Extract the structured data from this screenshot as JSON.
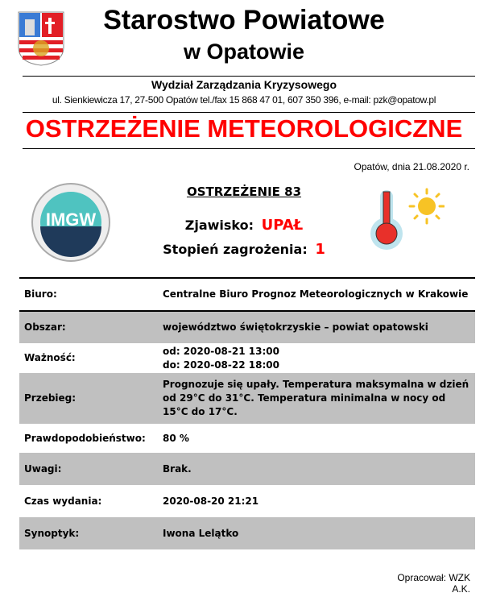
{
  "header": {
    "title_line1": "Starostwo Powiatowe",
    "title_line2": "w Opatowie",
    "department": "Wydział Zarządzania Kryzysowego",
    "address": "ul. Sienkiewicza 17, 27-500 Opatów tel./fax 15 868 47 01, 607 350 396, e-mail: pzk@opatow.pl",
    "doc_title": "OSTRZEŻENIE METEOROLOGICZNE",
    "date": "Opatów, dnia 21.08.2020 r."
  },
  "warning": {
    "heading": "OSTRZEŻENIE 83",
    "phenomenon_label": "Zjawisko:",
    "phenomenon_value": "UPAŁ",
    "level_label": "Stopień zagrożenia:",
    "level_value": "1",
    "logo_text": "IMGW"
  },
  "table": {
    "rows": [
      {
        "label": "Biuro:",
        "value": "Centralne Biuro Prognoz Meteorologicznych w Krakowie"
      },
      {
        "label": "Obszar:",
        "value": "województwo świętokrzyskie – powiat opatowski"
      },
      {
        "label": "Ważność:",
        "value": "od: 2020-08-21 13:00",
        "value2": "do: 2020-08-22 18:00"
      },
      {
        "label": "Przebieg:",
        "value": "Prognozuje się upały. Temperatura maksymalna w dzień od 29°C do 31°C. Temperatura minimalna w nocy od 15°C do 17°C."
      },
      {
        "label": "Prawdopodobieństwo:",
        "value": "80 %"
      },
      {
        "label": "Uwagi:",
        "value": "Brak."
      },
      {
        "label": "Czas wydania:",
        "value": "2020-08-20 21:21"
      },
      {
        "label": "Synoptyk:",
        "value": "Iwona Lelątko"
      }
    ]
  },
  "footer": {
    "prepared_by": "Opracował: WZK",
    "initials": "A.K."
  },
  "colors": {
    "accent_red": "#ff0000",
    "row_gray": "#c0c0c0",
    "imgw_teal": "#4fc3c0",
    "imgw_navy": "#1f3a5a"
  }
}
